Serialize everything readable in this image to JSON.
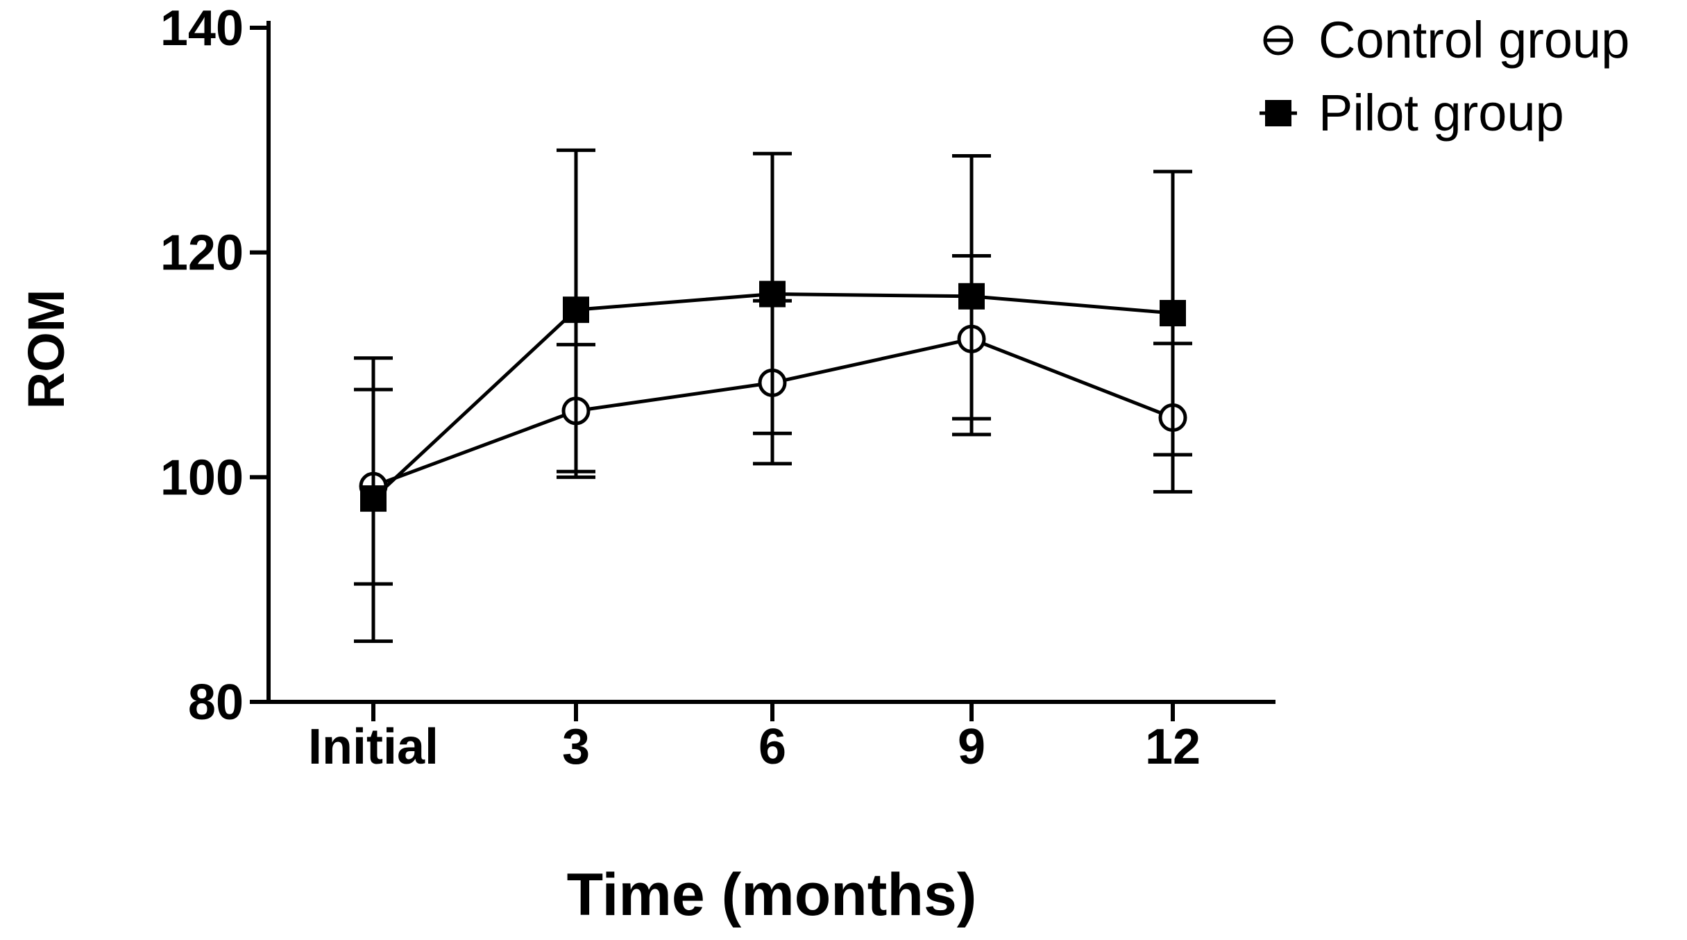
{
  "chart_data": {
    "type": "line",
    "title": "",
    "xlabel": "Time (months)",
    "ylabel": "ROM",
    "categories": [
      "Initial",
      "3",
      "6",
      "9",
      "12"
    ],
    "ylim": [
      80,
      140
    ],
    "yticks": [
      80,
      100,
      120,
      140
    ],
    "legend_position": "top-right",
    "series": [
      {
        "name": "Control group",
        "marker": "open-circle",
        "values": [
          99.2,
          105.9,
          108.4,
          112.3,
          105.3
        ],
        "err_low": [
          90.5,
          100.0,
          101.2,
          105.2,
          98.7
        ],
        "err_high": [
          107.8,
          111.8,
          115.7,
          119.7,
          111.9
        ]
      },
      {
        "name": "Pilot group",
        "marker": "filled-square",
        "values": [
          98.1,
          114.9,
          116.3,
          116.1,
          114.6
        ],
        "err_low": [
          85.4,
          100.5,
          103.9,
          103.8,
          102.0
        ],
        "err_high": [
          110.6,
          129.1,
          128.8,
          128.6,
          127.2
        ]
      }
    ]
  }
}
